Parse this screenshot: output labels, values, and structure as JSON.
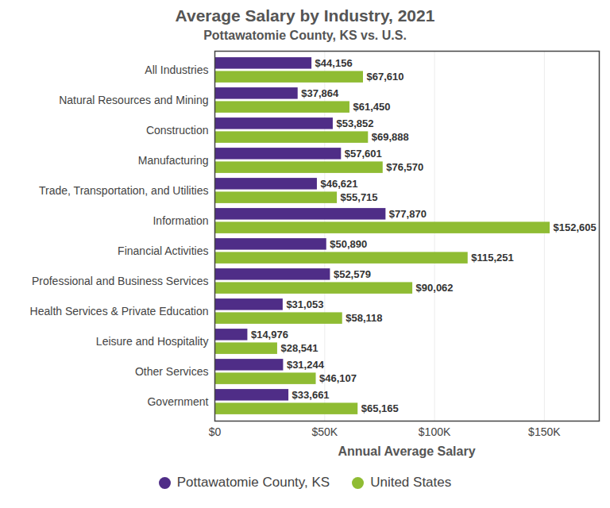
{
  "chart_data": {
    "type": "bar",
    "orientation": "horizontal",
    "title": "Average Salary by Industry, 2021",
    "subtitle": "Pottawatomie County, KS vs. U.S.",
    "x_label": "Annual Average Salary",
    "categories": [
      "All Industries",
      "Natural Resources and Mining",
      "Construction",
      "Manufacturing",
      "Trade, Transportation, and Utilities",
      "Information",
      "Financial Activities",
      "Professional and Business Services",
      "Health Services & Private Education",
      "Leisure and Hospitality",
      "Other Services",
      "Government"
    ],
    "series": [
      {
        "name": "Pottawatomie County, KS",
        "color": "#4f2d87",
        "values": [
          44156,
          37864,
          53852,
          57601,
          46621,
          77870,
          50890,
          52579,
          31053,
          14976,
          31244,
          33661
        ],
        "value_labels": [
          "$44,156",
          "$37,864",
          "$53,852",
          "$57,601",
          "$46,621",
          "$77,870",
          "$50,890",
          "$52,579",
          "$31,053",
          "$14,976",
          "$31,244",
          "$33,661"
        ]
      },
      {
        "name": "United States",
        "color": "#8fbc33",
        "values": [
          67610,
          61450,
          69888,
          76570,
          55715,
          152605,
          115251,
          90062,
          58118,
          28541,
          46107,
          65165
        ],
        "value_labels": [
          "$67,610",
          "$61,450",
          "$69,888",
          "$76,570",
          "$55,715",
          "$152,605",
          "$115,251",
          "$90,062",
          "$58,118",
          "$28,541",
          "$46,107",
          "$65,165"
        ]
      }
    ],
    "xlim": [
      0,
      175000
    ],
    "xticks": [
      {
        "value": 0,
        "label": "$0"
      },
      {
        "value": 50000,
        "label": "$50K"
      },
      {
        "value": 100000,
        "label": "$100K"
      },
      {
        "value": 150000,
        "label": "$150K"
      }
    ],
    "grid": true,
    "data_labels": true,
    "legend": "bottom"
  }
}
